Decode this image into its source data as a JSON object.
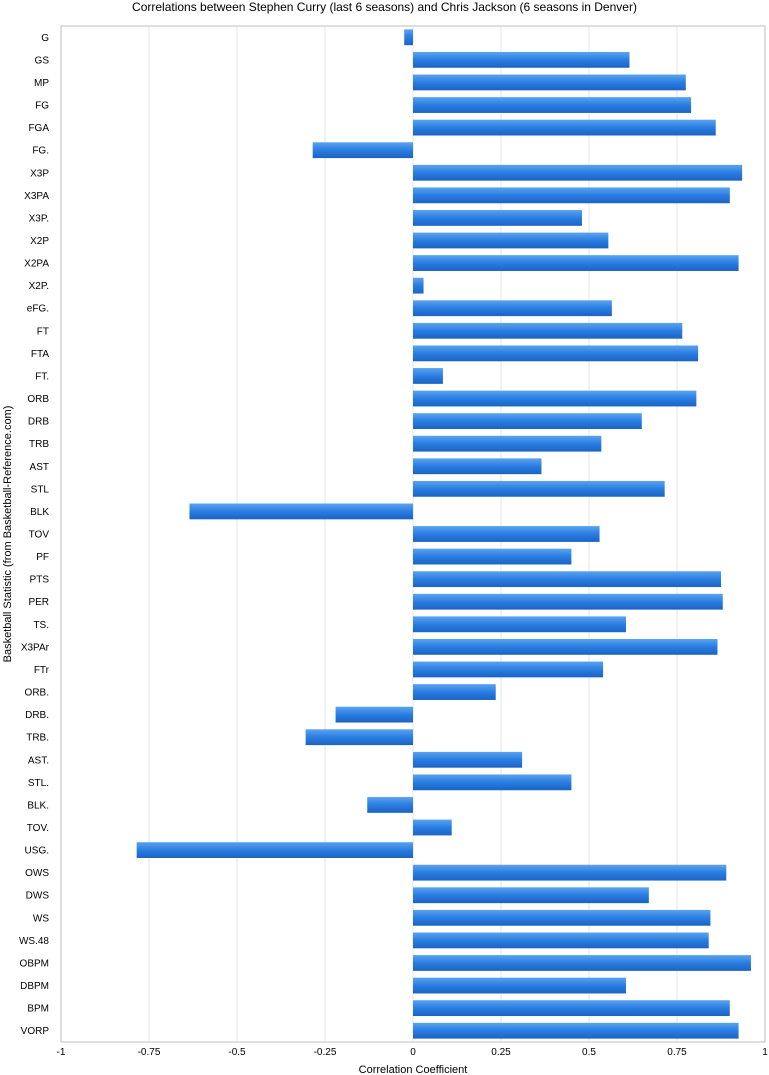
{
  "chart_data": {
    "type": "bar",
    "orientation": "horizontal",
    "title": "Correlations between Stephen Curry (last 6 seasons) and Chris Jackson (6 seasons in Denver)",
    "xlabel": "Correlation Coefficient",
    "ylabel": "Basketball Statistic (from Basketball-Reference.com)",
    "xlim": [
      -1,
      1
    ],
    "xticks": [
      -1,
      -0.75,
      -0.5,
      -0.25,
      0,
      0.25,
      0.5,
      0.75,
      1
    ],
    "xtick_labels": [
      "-1",
      "-0.75",
      "-0.5",
      "-0.25",
      "0",
      "0.25",
      "0.5",
      "0.75",
      "1"
    ],
    "grid": true,
    "bar_color": "#2a7de1",
    "categories": [
      "G",
      "GS",
      "MP",
      "FG",
      "FGA",
      "FG.",
      "X3P",
      "X3PA",
      "X3P.",
      "X2P",
      "X2PA",
      "X2P.",
      "eFG.",
      "FT",
      "FTA",
      "FT.",
      "ORB",
      "DRB",
      "TRB",
      "AST",
      "STL",
      "BLK",
      "TOV",
      "PF",
      "PTS",
      "PER",
      "TS.",
      "X3PAr",
      "FTr",
      "ORB.",
      "DRB.",
      "TRB.",
      "AST.",
      "STL.",
      "BLK.",
      "TOV.",
      "USG.",
      "OWS",
      "DWS",
      "WS",
      "WS.48",
      "OBPM",
      "DBPM",
      "BPM",
      "VORP"
    ],
    "values": [
      -0.025,
      0.615,
      0.775,
      0.79,
      0.86,
      -0.285,
      0.935,
      0.9,
      0.48,
      0.555,
      0.925,
      0.03,
      0.565,
      0.765,
      0.81,
      0.085,
      0.805,
      0.65,
      0.535,
      0.365,
      0.715,
      -0.635,
      0.53,
      0.45,
      0.875,
      0.88,
      0.605,
      0.865,
      0.54,
      0.235,
      -0.22,
      -0.305,
      0.31,
      0.45,
      -0.13,
      0.11,
      -0.785,
      0.89,
      0.67,
      0.845,
      0.84,
      0.96,
      0.605,
      0.9,
      0.925
    ]
  }
}
